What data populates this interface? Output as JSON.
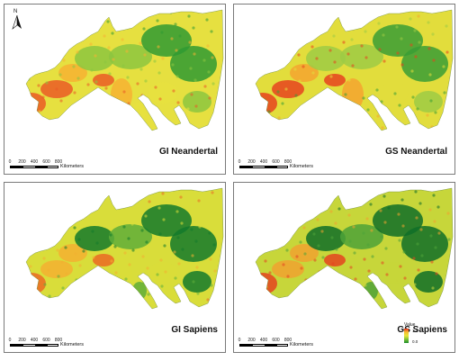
{
  "panels": [
    {
      "title": "GI Neandertal",
      "scheme": [
        "#2f9a33",
        "#8cc63f",
        "#e6e040",
        "#f6b233",
        "#ea5b26"
      ],
      "north": true
    },
    {
      "title": "GS Neandertal",
      "scheme": [
        "#3a9e35",
        "#9dcb44",
        "#e2dd3c",
        "#f4a52f",
        "#e6431e"
      ],
      "north": false
    },
    {
      "title": "GI Sapiens",
      "scheme": [
        "#137a2b",
        "#5fae3a",
        "#d9dd3a",
        "#f3b031",
        "#ea6a25"
      ],
      "north": false
    },
    {
      "title": "GS Sapiens",
      "scheme": [
        "#0f6e28",
        "#4ea238",
        "#c7d63a",
        "#f0a230",
        "#e44420"
      ],
      "north": false
    }
  ],
  "scalebar": {
    "ticks": [
      "0",
      "200",
      "400",
      "600",
      "800"
    ],
    "unit": "Kilometers"
  },
  "north_label": "N",
  "legend": {
    "title": "Value",
    "high": "1.0",
    "low": "0.0"
  },
  "colors": {
    "border": "#7a7a7a",
    "high": "#e8301c",
    "low": "#1a8b2a"
  }
}
